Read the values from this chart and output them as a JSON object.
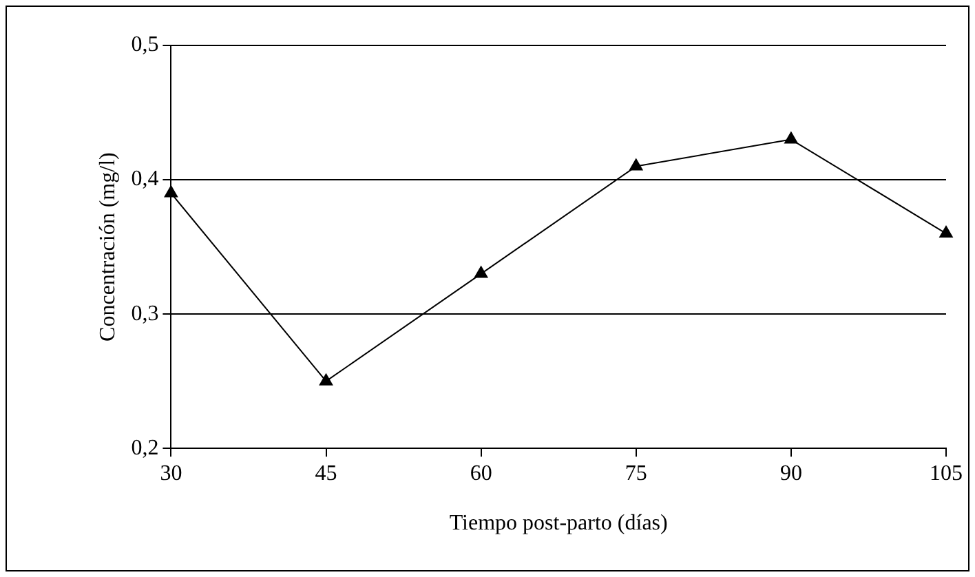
{
  "chart_data": {
    "type": "line",
    "xlabel": "Tiempo post-parto (días)",
    "ylabel": "Concentración (mg/l)",
    "x": [
      30,
      45,
      60,
      75,
      90,
      105
    ],
    "series": [
      {
        "color": "#000000",
        "values": [
          0.39,
          0.25,
          0.33,
          0.41,
          0.43,
          0.36
        ]
      }
    ],
    "xlim": [
      30,
      105
    ],
    "xticks": [
      30,
      45,
      60,
      75,
      90,
      105
    ],
    "ylim": [
      0.2,
      0.5
    ],
    "yticks": [
      {
        "value": 0.2,
        "label": "0,2"
      },
      {
        "value": 0.3,
        "label": "0,3"
      },
      {
        "value": 0.4,
        "label": "0,4"
      },
      {
        "value": 0.5,
        "label": "0,5"
      }
    ],
    "grid": "y",
    "legend": false,
    "marker": "triangle",
    "line_style": "solid"
  }
}
